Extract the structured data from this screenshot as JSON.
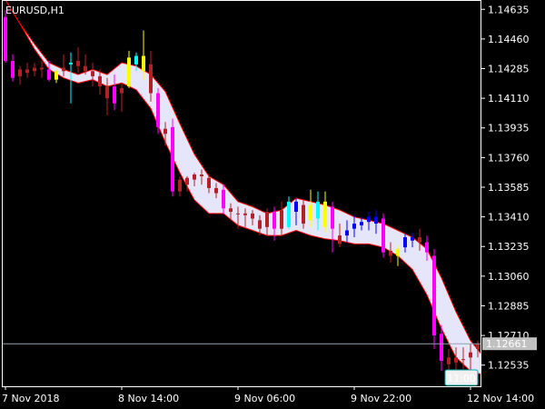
{
  "chart_data": {
    "type": "candlestick",
    "symbol_label": "EURUSD,H1",
    "colors": {
      "background": "#000000",
      "frame": "#ffffff",
      "text": "#ffffff",
      "band_fill": "#e6e6fa",
      "band_edge": "#ff0000",
      "bear_strong": "#ff00ff",
      "bear_weak": "#b22222",
      "bull_strong": "#0000ff",
      "bull_weak": "#00ffff",
      "neutral": "#ffff00",
      "price_line": "#8fa2b2",
      "price_label_bg": "#c0c0c0",
      "price_label_text": "#000000",
      "time_label_bg": "#f0f0f0",
      "time_label_text": "#00aaaa"
    },
    "y_axis": {
      "ticks": [
        "1.14635",
        "1.14460",
        "1.14285",
        "1.14110",
        "1.13935",
        "1.13760",
        "1.13585",
        "1.13410",
        "1.13235",
        "1.13060",
        "1.12885",
        "1.12710",
        "1.12535"
      ],
      "range": [
        1.1241,
        1.1469
      ]
    },
    "x_axis": {
      "ticks": [
        "7 Nov 2018",
        "8 Nov 14:00",
        "9 Nov 06:00",
        "9 Nov 22:00",
        "12 Nov 14:00"
      ],
      "tick_index": [
        0,
        32,
        64,
        96,
        128
      ]
    },
    "current_price": "1.12661",
    "current_price_value": 1.12661,
    "time_marker": "11:00",
    "band": {
      "index": [
        0,
        4,
        8,
        12,
        16,
        20,
        24,
        28,
        32,
        36,
        40,
        44,
        48,
        52,
        56,
        60,
        64,
        68,
        72,
        76,
        80,
        84,
        88,
        92,
        96,
        100,
        104,
        108,
        112,
        116,
        120,
        124,
        128,
        131
      ],
      "upper": [
        1.1469,
        1.1455,
        1.1443,
        1.1432,
        1.1428,
        1.1425,
        1.1428,
        1.1425,
        1.1432,
        1.143,
        1.1425,
        1.1415,
        1.1396,
        1.1378,
        1.1365,
        1.136,
        1.135,
        1.1347,
        1.1343,
        1.1345,
        1.1352,
        1.135,
        1.1348,
        1.1345,
        1.1341,
        1.1339,
        1.1337,
        1.1333,
        1.1329,
        1.1322,
        1.1305,
        1.1285,
        1.1268,
        1.126
      ],
      "lower": [
        1.1469,
        1.1455,
        1.144,
        1.1428,
        1.1423,
        1.142,
        1.1422,
        1.1418,
        1.142,
        1.1416,
        1.1405,
        1.1385,
        1.1367,
        1.1351,
        1.1343,
        1.1343,
        1.1336,
        1.1333,
        1.133,
        1.133,
        1.1333,
        1.133,
        1.1328,
        1.1327,
        1.1325,
        1.1325,
        1.1323,
        1.1318,
        1.131,
        1.1295,
        1.1275,
        1.1258,
        1.125,
        1.1248
      ]
    },
    "candles": [
      {
        "i": 0,
        "o": 1.1459,
        "h": 1.1463,
        "l": 1.1432,
        "c": 1.1433,
        "k": "bear_strong"
      },
      {
        "i": 2,
        "o": 1.1433,
        "h": 1.1437,
        "l": 1.1421,
        "c": 1.1423,
        "k": "bear_strong"
      },
      {
        "i": 4,
        "o": 1.1424,
        "h": 1.143,
        "l": 1.1419,
        "c": 1.1428,
        "k": "bear_weak"
      },
      {
        "i": 6,
        "o": 1.1428,
        "h": 1.1432,
        "l": 1.1423,
        "c": 1.1426,
        "k": "bear_weak"
      },
      {
        "i": 8,
        "o": 1.1427,
        "h": 1.1432,
        "l": 1.1424,
        "c": 1.1429,
        "k": "bear_weak"
      },
      {
        "i": 10,
        "o": 1.1429,
        "h": 1.1433,
        "l": 1.1423,
        "c": 1.1428,
        "k": "bear_weak"
      },
      {
        "i": 12,
        "o": 1.1428,
        "h": 1.1433,
        "l": 1.1421,
        "c": 1.1422,
        "k": "bear_strong"
      },
      {
        "i": 14,
        "o": 1.1422,
        "h": 1.1428,
        "l": 1.142,
        "c": 1.1427,
        "k": "neutral"
      },
      {
        "i": 16,
        "o": 1.1427,
        "h": 1.1437,
        "l": 1.1424,
        "c": 1.1429,
        "k": "bear_weak"
      },
      {
        "i": 18,
        "o": 1.1431,
        "h": 1.1438,
        "l": 1.1408,
        "c": 1.1432,
        "k": "bull_weak"
      },
      {
        "i": 20,
        "o": 1.1433,
        "h": 1.1441,
        "l": 1.1426,
        "c": 1.143,
        "k": "bear_weak"
      },
      {
        "i": 22,
        "o": 1.143,
        "h": 1.1437,
        "l": 1.1425,
        "c": 1.1427,
        "k": "bear_weak"
      },
      {
        "i": 24,
        "o": 1.1427,
        "h": 1.1432,
        "l": 1.1418,
        "c": 1.1424,
        "k": "bear_weak"
      },
      {
        "i": 26,
        "o": 1.1424,
        "h": 1.1428,
        "l": 1.1413,
        "c": 1.1418,
        "k": "bear_weak"
      },
      {
        "i": 28,
        "o": 1.1418,
        "h": 1.1423,
        "l": 1.1401,
        "c": 1.1411,
        "k": "bear_weak"
      },
      {
        "i": 30,
        "o": 1.1418,
        "h": 1.1425,
        "l": 1.1404,
        "c": 1.1408,
        "k": "bear_strong"
      },
      {
        "i": 32,
        "o": 1.1414,
        "h": 1.142,
        "l": 1.1403,
        "c": 1.1417,
        "k": "bear_weak"
      },
      {
        "i": 34,
        "o": 1.1418,
        "h": 1.1439,
        "l": 1.1417,
        "c": 1.1435,
        "k": "neutral"
      },
      {
        "i": 36,
        "o": 1.1431,
        "h": 1.1438,
        "l": 1.1427,
        "c": 1.1436,
        "k": "bull_weak"
      },
      {
        "i": 38,
        "o": 1.1436,
        "h": 1.1451,
        "l": 1.1422,
        "c": 1.1427,
        "k": "neutral"
      },
      {
        "i": 40,
        "o": 1.1431,
        "h": 1.1439,
        "l": 1.1409,
        "c": 1.1414,
        "k": "bear_weak"
      },
      {
        "i": 42,
        "o": 1.1414,
        "h": 1.1417,
        "l": 1.139,
        "c": 1.1394,
        "k": "bear_strong"
      },
      {
        "i": 44,
        "o": 1.139,
        "h": 1.1397,
        "l": 1.1383,
        "c": 1.1393,
        "k": "bear_weak"
      },
      {
        "i": 46,
        "o": 1.1394,
        "h": 1.1399,
        "l": 1.1353,
        "c": 1.1356,
        "k": "bear_strong"
      },
      {
        "i": 48,
        "o": 1.1356,
        "h": 1.1365,
        "l": 1.1353,
        "c": 1.1363,
        "k": "bear_weak"
      },
      {
        "i": 50,
        "o": 1.136,
        "h": 1.1365,
        "l": 1.1356,
        "c": 1.1364,
        "k": "bear_weak"
      },
      {
        "i": 52,
        "o": 1.1363,
        "h": 1.1367,
        "l": 1.1359,
        "c": 1.1366,
        "k": "bear_weak"
      },
      {
        "i": 54,
        "o": 1.1366,
        "h": 1.1369,
        "l": 1.136,
        "c": 1.1365,
        "k": "bear_weak"
      },
      {
        "i": 56,
        "o": 1.1364,
        "h": 1.1366,
        "l": 1.1355,
        "c": 1.1358,
        "k": "bear_weak"
      },
      {
        "i": 58,
        "o": 1.1358,
        "h": 1.1361,
        "l": 1.1352,
        "c": 1.1355,
        "k": "bear_weak"
      },
      {
        "i": 60,
        "o": 1.1357,
        "h": 1.136,
        "l": 1.1343,
        "c": 1.1346,
        "k": "bear_strong"
      },
      {
        "i": 62,
        "o": 1.1346,
        "h": 1.1349,
        "l": 1.1339,
        "c": 1.1344,
        "k": "bear_weak"
      },
      {
        "i": 64,
        "o": 1.1343,
        "h": 1.1347,
        "l": 1.1334,
        "c": 1.1343,
        "k": "bear_weak"
      },
      {
        "i": 66,
        "o": 1.1343,
        "h": 1.1346,
        "l": 1.1335,
        "c": 1.1342,
        "k": "bear_weak"
      },
      {
        "i": 68,
        "o": 1.1343,
        "h": 1.1345,
        "l": 1.1336,
        "c": 1.134,
        "k": "bear_weak"
      },
      {
        "i": 70,
        "o": 1.1339,
        "h": 1.1342,
        "l": 1.133,
        "c": 1.1334,
        "k": "bear_weak"
      },
      {
        "i": 72,
        "o": 1.1335,
        "h": 1.1346,
        "l": 1.133,
        "c": 1.1344,
        "k": "bear_weak"
      },
      {
        "i": 74,
        "o": 1.1344,
        "h": 1.1347,
        "l": 1.1327,
        "c": 1.1334,
        "k": "bear_strong"
      },
      {
        "i": 76,
        "o": 1.1334,
        "h": 1.135,
        "l": 1.133,
        "c": 1.1345,
        "k": "bear_weak"
      },
      {
        "i": 78,
        "o": 1.1335,
        "h": 1.1353,
        "l": 1.1334,
        "c": 1.135,
        "k": "bull_weak"
      },
      {
        "i": 80,
        "o": 1.1344,
        "h": 1.1352,
        "l": 1.1336,
        "c": 1.135,
        "k": "bull_strong"
      },
      {
        "i": 82,
        "o": 1.1348,
        "h": 1.1351,
        "l": 1.1334,
        "c": 1.1337,
        "k": "bear_weak"
      },
      {
        "i": 84,
        "o": 1.1339,
        "h": 1.1357,
        "l": 1.1335,
        "c": 1.1348,
        "k": "neutral"
      },
      {
        "i": 86,
        "o": 1.134,
        "h": 1.1356,
        "l": 1.1333,
        "c": 1.135,
        "k": "bull_weak"
      },
      {
        "i": 88,
        "o": 1.135,
        "h": 1.1356,
        "l": 1.1332,
        "c": 1.1335,
        "k": "neutral"
      },
      {
        "i": 90,
        "o": 1.1347,
        "h": 1.135,
        "l": 1.132,
        "c": 1.1334,
        "k": "bear_strong"
      },
      {
        "i": 92,
        "o": 1.133,
        "h": 1.1337,
        "l": 1.1323,
        "c": 1.1325,
        "k": "bear_weak"
      },
      {
        "i": 94,
        "o": 1.133,
        "h": 1.1339,
        "l": 1.1326,
        "c": 1.1333,
        "k": "bull_strong"
      },
      {
        "i": 96,
        "o": 1.1334,
        "h": 1.1342,
        "l": 1.1329,
        "c": 1.1337,
        "k": "bull_strong"
      },
      {
        "i": 98,
        "o": 1.1336,
        "h": 1.1341,
        "l": 1.1333,
        "c": 1.1338,
        "k": "bull_strong"
      },
      {
        "i": 100,
        "o": 1.1338,
        "h": 1.1344,
        "l": 1.1333,
        "c": 1.1341,
        "k": "bull_strong"
      },
      {
        "i": 102,
        "o": 1.1341,
        "h": 1.1345,
        "l": 1.1331,
        "c": 1.1337,
        "k": "bull_strong"
      },
      {
        "i": 104,
        "o": 1.134,
        "h": 1.1343,
        "l": 1.1317,
        "c": 1.132,
        "k": "bear_strong"
      },
      {
        "i": 106,
        "o": 1.1321,
        "h": 1.1326,
        "l": 1.1314,
        "c": 1.1318,
        "k": "bear_weak"
      },
      {
        "i": 108,
        "o": 1.1318,
        "h": 1.1324,
        "l": 1.1312,
        "c": 1.1322,
        "k": "neutral"
      },
      {
        "i": 110,
        "o": 1.1323,
        "h": 1.1331,
        "l": 1.132,
        "c": 1.1329,
        "k": "bull_strong"
      },
      {
        "i": 112,
        "o": 1.1327,
        "h": 1.1332,
        "l": 1.1323,
        "c": 1.1329,
        "k": "bull_strong"
      },
      {
        "i": 114,
        "o": 1.1329,
        "h": 1.1334,
        "l": 1.1321,
        "c": 1.1326,
        "k": "bear_weak"
      },
      {
        "i": 116,
        "o": 1.1326,
        "h": 1.133,
        "l": 1.1315,
        "c": 1.132,
        "k": "bear_strong"
      },
      {
        "i": 118,
        "o": 1.1318,
        "h": 1.1322,
        "l": 1.1263,
        "c": 1.1271,
        "k": "bear_strong"
      },
      {
        "i": 120,
        "o": 1.1272,
        "h": 1.1277,
        "l": 1.125,
        "c": 1.1256,
        "k": "bear_strong"
      },
      {
        "i": 122,
        "o": 1.1258,
        "h": 1.1263,
        "l": 1.1243,
        "c": 1.1254,
        "k": "bear_weak"
      },
      {
        "i": 124,
        "o": 1.1255,
        "h": 1.1264,
        "l": 1.1249,
        "c": 1.1258,
        "k": "bear_weak"
      },
      {
        "i": 126,
        "o": 1.1257,
        "h": 1.1264,
        "l": 1.1249,
        "c": 1.1257,
        "k": "bear_weak"
      },
      {
        "i": 128,
        "o": 1.1258,
        "h": 1.1266,
        "l": 1.1249,
        "c": 1.1261,
        "k": "bear_weak"
      },
      {
        "i": 130,
        "o": 1.1263,
        "h": 1.1268,
        "l": 1.1258,
        "c": 1.1266,
        "k": "bear_weak"
      }
    ]
  }
}
